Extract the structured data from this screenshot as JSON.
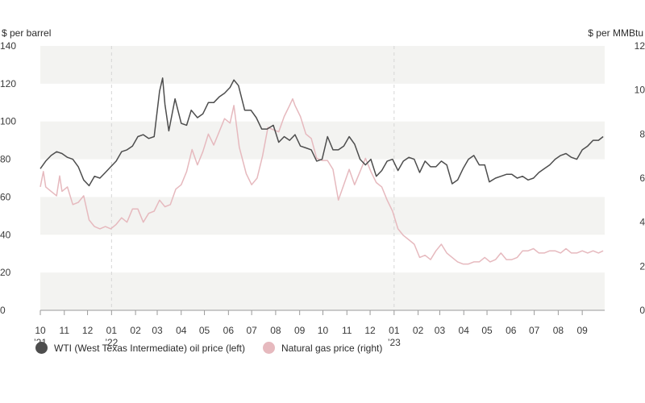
{
  "chart_data": {
    "type": "line",
    "ylabel_left": "$ per barrel",
    "ylabel_right": "$ per MMBtu",
    "ylim_left": [
      0,
      140
    ],
    "ylim_right": [
      0,
      12
    ],
    "yticks_left": [
      "0",
      "20",
      "40",
      "60",
      "80",
      "100",
      "120",
      "140"
    ],
    "yticks_right": [
      "0",
      "2",
      "4",
      "6",
      "8",
      "10",
      "12"
    ],
    "xlim": [
      "2021-10-01",
      "2023-09-30"
    ],
    "xticks": [
      {
        "date": "2021-10-01",
        "line1": "10",
        "line2": "’21"
      },
      {
        "date": "2021-11-01",
        "line1": "11",
        "line2": ""
      },
      {
        "date": "2021-12-01",
        "line1": "12",
        "line2": ""
      },
      {
        "date": "2022-01-01",
        "line1": "01",
        "line2": "’22"
      },
      {
        "date": "2022-02-01",
        "line1": "02",
        "line2": ""
      },
      {
        "date": "2022-03-01",
        "line1": "03",
        "line2": ""
      },
      {
        "date": "2022-04-01",
        "line1": "04",
        "line2": ""
      },
      {
        "date": "2022-05-01",
        "line1": "05",
        "line2": ""
      },
      {
        "date": "2022-06-01",
        "line1": "06",
        "line2": ""
      },
      {
        "date": "2022-07-01",
        "line1": "07",
        "line2": ""
      },
      {
        "date": "2022-08-01",
        "line1": "08",
        "line2": ""
      },
      {
        "date": "2022-09-01",
        "line1": "09",
        "line2": ""
      },
      {
        "date": "2022-10-01",
        "line1": "10",
        "line2": ""
      },
      {
        "date": "2022-11-01",
        "line1": "11",
        "line2": ""
      },
      {
        "date": "2022-12-01",
        "line1": "12",
        "line2": ""
      },
      {
        "date": "2023-01-01",
        "line1": "01",
        "line2": "’23"
      },
      {
        "date": "2023-02-01",
        "line1": "02",
        "line2": ""
      },
      {
        "date": "2023-03-01",
        "line1": "03",
        "line2": ""
      },
      {
        "date": "2023-04-01",
        "line1": "04",
        "line2": ""
      },
      {
        "date": "2023-05-01",
        "line1": "05",
        "line2": ""
      },
      {
        "date": "2023-06-01",
        "line1": "06",
        "line2": ""
      },
      {
        "date": "2023-07-01",
        "line1": "07",
        "line2": ""
      },
      {
        "date": "2023-08-01",
        "line1": "08",
        "line2": ""
      },
      {
        "date": "2023-09-01",
        "line1": "09",
        "line2": ""
      }
    ],
    "year_dividers": [
      "2022-01-01",
      "2023-01-01"
    ],
    "grid": "alternating horizontal bands",
    "legend_position": "bottom-left",
    "series": [
      {
        "name": "WTI (West Texas Intermediate) oil price (left)",
        "axis": "left",
        "color": "#4d4d4d",
        "points": [
          [
            "2021-10-01",
            75
          ],
          [
            "2021-10-08",
            79
          ],
          [
            "2021-10-15",
            82
          ],
          [
            "2021-10-22",
            84
          ],
          [
            "2021-10-29",
            83
          ],
          [
            "2021-11-05",
            81
          ],
          [
            "2021-11-12",
            80
          ],
          [
            "2021-11-19",
            76
          ],
          [
            "2021-11-26",
            69
          ],
          [
            "2021-12-03",
            66
          ],
          [
            "2021-12-10",
            71
          ],
          [
            "2021-12-17",
            70
          ],
          [
            "2021-12-24",
            73
          ],
          [
            "2021-12-31",
            76
          ],
          [
            "2022-01-07",
            79
          ],
          [
            "2022-01-14",
            84
          ],
          [
            "2022-01-21",
            85
          ],
          [
            "2022-01-28",
            87
          ],
          [
            "2022-02-04",
            92
          ],
          [
            "2022-02-11",
            93
          ],
          [
            "2022-02-18",
            91
          ],
          [
            "2022-02-25",
            92
          ],
          [
            "2022-03-04",
            116
          ],
          [
            "2022-03-08",
            123
          ],
          [
            "2022-03-11",
            109
          ],
          [
            "2022-03-16",
            95
          ],
          [
            "2022-03-24",
            112
          ],
          [
            "2022-04-01",
            99
          ],
          [
            "2022-04-08",
            98
          ],
          [
            "2022-04-14",
            106
          ],
          [
            "2022-04-22",
            102
          ],
          [
            "2022-04-29",
            104
          ],
          [
            "2022-05-06",
            110
          ],
          [
            "2022-05-13",
            110
          ],
          [
            "2022-05-20",
            113
          ],
          [
            "2022-05-27",
            115
          ],
          [
            "2022-06-03",
            118
          ],
          [
            "2022-06-08",
            122
          ],
          [
            "2022-06-14",
            119
          ],
          [
            "2022-06-22",
            106
          ],
          [
            "2022-06-30",
            106
          ],
          [
            "2022-07-07",
            102
          ],
          [
            "2022-07-14",
            96
          ],
          [
            "2022-07-21",
            96
          ],
          [
            "2022-07-29",
            98
          ],
          [
            "2022-08-05",
            89
          ],
          [
            "2022-08-12",
            92
          ],
          [
            "2022-08-19",
            90
          ],
          [
            "2022-08-26",
            93
          ],
          [
            "2022-09-02",
            87
          ],
          [
            "2022-09-09",
            86
          ],
          [
            "2022-09-16",
            85
          ],
          [
            "2022-09-23",
            79
          ],
          [
            "2022-09-30",
            80
          ],
          [
            "2022-10-07",
            92
          ],
          [
            "2022-10-14",
            85
          ],
          [
            "2022-10-21",
            85
          ],
          [
            "2022-10-28",
            87
          ],
          [
            "2022-11-04",
            92
          ],
          [
            "2022-11-11",
            88
          ],
          [
            "2022-11-18",
            80
          ],
          [
            "2022-11-25",
            77
          ],
          [
            "2022-12-02",
            80
          ],
          [
            "2022-12-09",
            71
          ],
          [
            "2022-12-16",
            74
          ],
          [
            "2022-12-23",
            79
          ],
          [
            "2022-12-30",
            80
          ],
          [
            "2023-01-06",
            74
          ],
          [
            "2023-01-13",
            79
          ],
          [
            "2023-01-20",
            81
          ],
          [
            "2023-01-27",
            80
          ],
          [
            "2023-02-03",
            73
          ],
          [
            "2023-02-10",
            79
          ],
          [
            "2023-02-17",
            76
          ],
          [
            "2023-02-24",
            76
          ],
          [
            "2023-03-03",
            79
          ],
          [
            "2023-03-10",
            77
          ],
          [
            "2023-03-17",
            67
          ],
          [
            "2023-03-24",
            69
          ],
          [
            "2023-03-31",
            75
          ],
          [
            "2023-04-07",
            80
          ],
          [
            "2023-04-14",
            82
          ],
          [
            "2023-04-21",
            77
          ],
          [
            "2023-04-28",
            77
          ],
          [
            "2023-05-04",
            68
          ],
          [
            "2023-05-12",
            70
          ],
          [
            "2023-05-19",
            71
          ],
          [
            "2023-05-26",
            72
          ],
          [
            "2023-06-02",
            72
          ],
          [
            "2023-06-09",
            70
          ],
          [
            "2023-06-16",
            71
          ],
          [
            "2023-06-23",
            69
          ],
          [
            "2023-06-30",
            70
          ],
          [
            "2023-07-07",
            73
          ],
          [
            "2023-07-14",
            75
          ],
          [
            "2023-07-21",
            77
          ],
          [
            "2023-07-28",
            80
          ],
          [
            "2023-08-04",
            82
          ],
          [
            "2023-08-11",
            83
          ],
          [
            "2023-08-18",
            81
          ],
          [
            "2023-08-25",
            80
          ],
          [
            "2023-09-01",
            85
          ],
          [
            "2023-09-08",
            87
          ],
          [
            "2023-09-15",
            90
          ],
          [
            "2023-09-22",
            90
          ],
          [
            "2023-09-28",
            92
          ]
        ]
      },
      {
        "name": "Natural gas price (right)",
        "axis": "right",
        "color": "#e6b9be",
        "points": [
          [
            "2021-10-01",
            5.6
          ],
          [
            "2021-10-05",
            6.3
          ],
          [
            "2021-10-08",
            5.6
          ],
          [
            "2021-10-15",
            5.4
          ],
          [
            "2021-10-22",
            5.2
          ],
          [
            "2021-10-26",
            6.1
          ],
          [
            "2021-10-29",
            5.4
          ],
          [
            "2021-11-05",
            5.6
          ],
          [
            "2021-11-12",
            4.8
          ],
          [
            "2021-11-19",
            4.9
          ],
          [
            "2021-11-26",
            5.2
          ],
          [
            "2021-12-03",
            4.1
          ],
          [
            "2021-12-10",
            3.8
          ],
          [
            "2021-12-17",
            3.7
          ],
          [
            "2021-12-24",
            3.8
          ],
          [
            "2021-12-31",
            3.7
          ],
          [
            "2022-01-07",
            3.9
          ],
          [
            "2022-01-14",
            4.2
          ],
          [
            "2022-01-21",
            4.0
          ],
          [
            "2022-01-28",
            4.6
          ],
          [
            "2022-02-04",
            4.6
          ],
          [
            "2022-02-11",
            4.0
          ],
          [
            "2022-02-18",
            4.4
          ],
          [
            "2022-02-25",
            4.5
          ],
          [
            "2022-03-04",
            5.0
          ],
          [
            "2022-03-11",
            4.7
          ],
          [
            "2022-03-18",
            4.8
          ],
          [
            "2022-03-25",
            5.5
          ],
          [
            "2022-04-01",
            5.7
          ],
          [
            "2022-04-08",
            6.3
          ],
          [
            "2022-04-15",
            7.3
          ],
          [
            "2022-04-22",
            6.6
          ],
          [
            "2022-04-29",
            7.2
          ],
          [
            "2022-05-06",
            8.0
          ],
          [
            "2022-05-13",
            7.5
          ],
          [
            "2022-05-20",
            8.1
          ],
          [
            "2022-05-27",
            8.7
          ],
          [
            "2022-06-03",
            8.5
          ],
          [
            "2022-06-08",
            9.3
          ],
          [
            "2022-06-15",
            7.4
          ],
          [
            "2022-06-24",
            6.2
          ],
          [
            "2022-07-01",
            5.7
          ],
          [
            "2022-07-08",
            6.0
          ],
          [
            "2022-07-15",
            7.0
          ],
          [
            "2022-07-22",
            8.3
          ],
          [
            "2022-07-29",
            8.2
          ],
          [
            "2022-08-05",
            8.1
          ],
          [
            "2022-08-12",
            8.8
          ],
          [
            "2022-08-19",
            9.3
          ],
          [
            "2022-08-23",
            9.6
          ],
          [
            "2022-08-26",
            9.3
          ],
          [
            "2022-09-02",
            8.8
          ],
          [
            "2022-09-09",
            8.0
          ],
          [
            "2022-09-16",
            7.8
          ],
          [
            "2022-09-23",
            6.9
          ],
          [
            "2022-09-30",
            6.8
          ],
          [
            "2022-10-07",
            6.8
          ],
          [
            "2022-10-14",
            6.4
          ],
          [
            "2022-10-21",
            5.0
          ],
          [
            "2022-10-28",
            5.7
          ],
          [
            "2022-11-04",
            6.4
          ],
          [
            "2022-11-11",
            5.7
          ],
          [
            "2022-11-18",
            6.3
          ],
          [
            "2022-11-25",
            6.9
          ],
          [
            "2022-12-02",
            6.3
          ],
          [
            "2022-12-09",
            5.8
          ],
          [
            "2022-12-16",
            5.6
          ],
          [
            "2022-12-23",
            5.0
          ],
          [
            "2022-12-30",
            4.5
          ],
          [
            "2023-01-06",
            3.7
          ],
          [
            "2023-01-13",
            3.4
          ],
          [
            "2023-01-20",
            3.2
          ],
          [
            "2023-01-27",
            3.0
          ],
          [
            "2023-02-03",
            2.4
          ],
          [
            "2023-02-10",
            2.5
          ],
          [
            "2023-02-17",
            2.3
          ],
          [
            "2023-02-24",
            2.7
          ],
          [
            "2023-03-03",
            3.0
          ],
          [
            "2023-03-10",
            2.6
          ],
          [
            "2023-03-17",
            2.4
          ],
          [
            "2023-03-24",
            2.2
          ],
          [
            "2023-03-31",
            2.1
          ],
          [
            "2023-04-07",
            2.1
          ],
          [
            "2023-04-14",
            2.2
          ],
          [
            "2023-04-21",
            2.2
          ],
          [
            "2023-04-28",
            2.4
          ],
          [
            "2023-05-05",
            2.2
          ],
          [
            "2023-05-12",
            2.3
          ],
          [
            "2023-05-19",
            2.6
          ],
          [
            "2023-05-26",
            2.3
          ],
          [
            "2023-06-02",
            2.3
          ],
          [
            "2023-06-09",
            2.4
          ],
          [
            "2023-06-16",
            2.7
          ],
          [
            "2023-06-23",
            2.7
          ],
          [
            "2023-06-30",
            2.8
          ],
          [
            "2023-07-07",
            2.6
          ],
          [
            "2023-07-14",
            2.6
          ],
          [
            "2023-07-21",
            2.7
          ],
          [
            "2023-07-28",
            2.7
          ],
          [
            "2023-08-04",
            2.6
          ],
          [
            "2023-08-11",
            2.8
          ],
          [
            "2023-08-18",
            2.6
          ],
          [
            "2023-08-25",
            2.6
          ],
          [
            "2023-09-01",
            2.7
          ],
          [
            "2023-09-08",
            2.6
          ],
          [
            "2023-09-15",
            2.7
          ],
          [
            "2023-09-22",
            2.6
          ],
          [
            "2023-09-28",
            2.7
          ]
        ]
      }
    ]
  }
}
